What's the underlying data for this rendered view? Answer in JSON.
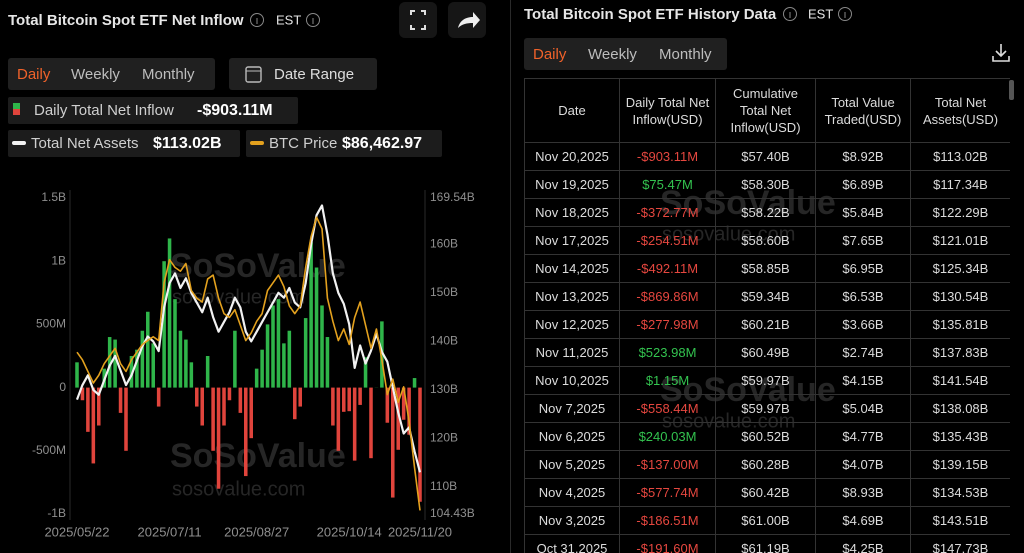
{
  "inflow_panel": {
    "title": "Total Bitcoin Spot ETF Net Inflow",
    "timezone": "EST",
    "tabs": [
      "Daily",
      "Weekly",
      "Monthly"
    ],
    "date_range": "Date Range"
  },
  "chart_data": {
    "type": "combo",
    "categories": [
      "2025/05/22",
      null,
      null,
      null,
      null,
      null,
      null,
      null,
      null,
      null,
      null,
      null,
      null,
      null,
      null,
      null,
      null,
      "2025/07/11",
      null,
      null,
      null,
      null,
      null,
      null,
      null,
      null,
      null,
      null,
      null,
      null,
      null,
      null,
      null,
      "2025/08/27",
      null,
      null,
      null,
      null,
      null,
      null,
      null,
      null,
      null,
      null,
      null,
      null,
      null,
      null,
      null,
      null,
      "2025/10/14",
      null,
      null,
      null,
      null,
      null,
      null,
      null,
      null,
      null,
      null,
      null,
      null,
      "2025/11/20"
    ],
    "ylim": [
      -1000,
      1500
    ],
    "yticks": [
      {
        "value": -1000,
        "label": "-1B"
      },
      {
        "value": -500,
        "label": "-500M"
      },
      0,
      {
        "value": 500,
        "label": "500M"
      },
      {
        "value": 1000,
        "label": "1B"
      },
      {
        "value": 1500,
        "label": "1.5B"
      }
    ],
    "y2lim": [
      104.43,
      169.54
    ],
    "y2ticks": [
      {
        "value": 104.43,
        "label": "104.43B"
      },
      {
        "value": 110,
        "label": "110B"
      },
      {
        "value": 120,
        "label": "120B"
      },
      {
        "value": 130,
        "label": "130B"
      },
      {
        "value": 140,
        "label": "140B"
      },
      {
        "value": 150,
        "label": "150B"
      },
      {
        "value": 160,
        "label": "160B"
      },
      {
        "value": 169.54,
        "label": "169.54B"
      }
    ],
    "y3lim": [
      86000,
      127000
    ],
    "grid": false,
    "series": [
      {
        "name": "Daily Total Net Inflow",
        "type": "bar",
        "color": "#2fb54a",
        "negative_color": "#e0443c",
        "current_value": "-$903.11M",
        "values": [
          200,
          -100,
          -350,
          -600,
          -300,
          150,
          400,
          380,
          -200,
          -500,
          250,
          300,
          450,
          600,
          350,
          -150,
          1000,
          1180,
          700,
          450,
          380,
          200,
          -150,
          -300,
          250,
          -500,
          -800,
          -300,
          -100,
          450,
          -200,
          -700,
          -400,
          150,
          300,
          500,
          650,
          700,
          350,
          450,
          -250,
          -150,
          550,
          1150,
          950,
          650,
          400,
          -300,
          -500,
          -191.6,
          -186.51,
          -577.74,
          -137.0,
          240.03,
          -558.44,
          1.15,
          523.98,
          -277.98,
          -869.86,
          -492.11,
          -254.51,
          -372.77,
          75.47,
          -903.11
        ]
      },
      {
        "name": "Total Net Assets",
        "type": "line",
        "axis": "y2",
        "color": "#f2f2f2",
        "current_value": "$113.02B",
        "values": [
          128,
          131,
          133,
          130,
          129,
          132,
          135,
          137,
          134,
          131,
          133,
          136,
          139,
          141,
          140,
          138,
          147,
          152,
          154,
          151,
          153,
          150,
          148,
          146,
          149,
          145,
          142,
          144,
          146,
          149,
          147,
          142,
          140,
          142,
          144,
          146,
          148,
          150,
          149,
          151,
          148,
          147,
          152,
          160,
          166,
          168,
          162,
          154,
          150,
          147.73,
          143.51,
          134.53,
          139.15,
          135.43,
          138.08,
          141.54,
          137.83,
          135.81,
          130.54,
          125.34,
          121.01,
          122.29,
          117.34,
          113.02
        ]
      },
      {
        "name": "BTC Price",
        "type": "line",
        "axis": "y3",
        "color": "#e3a11e",
        "current_value": "$86,462.97",
        "values": [
          107000,
          106000,
          104500,
          103000,
          104000,
          105500,
          106500,
          107500,
          105500,
          104500,
          106000,
          107000,
          108000,
          108500,
          109000,
          108500,
          116000,
          119000,
          118000,
          117500,
          118500,
          115000,
          114000,
          113500,
          116500,
          117000,
          114000,
          112000,
          111500,
          112500,
          110500,
          108500,
          109500,
          111000,
          112000,
          115000,
          116000,
          117000,
          115500,
          113000,
          112000,
          113000,
          118000,
          122000,
          124500,
          123000,
          114000,
          111000,
          108500,
          110000,
          108000,
          111500,
          113500,
          110500,
          107500,
          110000,
          106000,
          101500,
          103500,
          100500,
          102500,
          98000,
          92000,
          86462.97
        ]
      }
    ]
  },
  "history_panel": {
    "title": "Total Bitcoin Spot ETF History Data",
    "timezone": "EST",
    "tabs": [
      "Daily",
      "Weekly",
      "Monthly"
    ]
  },
  "table": {
    "columns": [
      "Date",
      "Daily Total Net Inflow(USD)",
      "Cumulative Total Net Inflow(USD)",
      "Total Value Traded(USD)",
      "Total Net Assets(USD)"
    ],
    "rows": [
      [
        "Nov 20,2025",
        "-$903.11M",
        "$57.40B",
        "$8.92B",
        "$113.02B"
      ],
      [
        "Nov 19,2025",
        "$75.47M",
        "$58.30B",
        "$6.89B",
        "$117.34B"
      ],
      [
        "Nov 18,2025",
        "-$372.77M",
        "$58.22B",
        "$5.84B",
        "$122.29B"
      ],
      [
        "Nov 17,2025",
        "-$254.51M",
        "$58.60B",
        "$7.65B",
        "$121.01B"
      ],
      [
        "Nov 14,2025",
        "-$492.11M",
        "$58.85B",
        "$6.95B",
        "$125.34B"
      ],
      [
        "Nov 13,2025",
        "-$869.86M",
        "$59.34B",
        "$6.53B",
        "$130.54B"
      ],
      [
        "Nov 12,2025",
        "-$277.98M",
        "$60.21B",
        "$3.66B",
        "$135.81B"
      ],
      [
        "Nov 11,2025",
        "$523.98M",
        "$60.49B",
        "$2.74B",
        "$137.83B"
      ],
      [
        "Nov 10,2025",
        "$1.15M",
        "$59.97B",
        "$4.15B",
        "$141.54B"
      ],
      [
        "Nov 7,2025",
        "-$558.44M",
        "$59.97B",
        "$5.04B",
        "$138.08B"
      ],
      [
        "Nov 6,2025",
        "$240.03M",
        "$60.52B",
        "$4.77B",
        "$135.43B"
      ],
      [
        "Nov 5,2025",
        "-$137.00M",
        "$60.28B",
        "$4.07B",
        "$139.15B"
      ],
      [
        "Nov 4,2025",
        "-$577.74M",
        "$60.42B",
        "$8.93B",
        "$134.53B"
      ],
      [
        "Nov 3,2025",
        "-$186.51M",
        "$61.00B",
        "$4.69B",
        "$143.51B"
      ],
      [
        "Oct 31,2025",
        "-$191.60M",
        "$61.19B",
        "$4.25B",
        "$147.73B"
      ]
    ]
  },
  "watermark": {
    "brand": "SoSoValue",
    "site": "sosovalue.com"
  }
}
